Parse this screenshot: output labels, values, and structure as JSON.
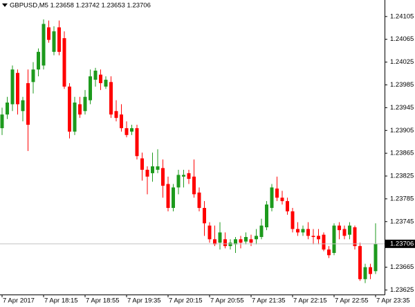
{
  "chart_data": {
    "type": "candlestick",
    "title": "GBPUSD,M5  1.23658 1.23742 1.23653 1.23706",
    "categories": [
      "7 Apr 2017",
      null,
      null,
      null,
      null,
      null,
      null,
      null,
      "7 Apr 18:15",
      null,
      null,
      null,
      null,
      null,
      null,
      null,
      "7 Apr 18:55",
      null,
      null,
      null,
      null,
      null,
      null,
      null,
      "7 Apr 19:35",
      null,
      null,
      null,
      null,
      null,
      null,
      null,
      "7 Apr 20:15",
      null,
      null,
      null,
      null,
      null,
      null,
      null,
      "7 Apr 20:55",
      null,
      null,
      null,
      null,
      null,
      null,
      null,
      "7 Apr 21:35",
      null,
      null,
      null,
      null,
      null,
      null,
      null,
      "7 Apr 22:15",
      null,
      null,
      null,
      null,
      null,
      null,
      null,
      "7 Apr 22:55",
      null,
      null,
      null,
      null,
      null,
      null,
      null,
      "7 Apr 23:35"
    ],
    "open": [
      1.23909,
      1.23933,
      1.23951,
      1.24006,
      1.23939,
      1.23988,
      1.2399,
      1.24012,
      1.24019,
      1.24086,
      1.24043,
      1.24086,
      1.24067,
      1.23982,
      1.23903,
      1.23951,
      1.23939,
      1.23958,
      1.23994,
      1.24003,
      1.23982,
      1.2399,
      1.23939,
      1.23933,
      1.23909,
      1.23903,
      1.23909,
      1.23856,
      1.23836,
      1.2383,
      1.23836,
      1.23839,
      1.23811,
      1.23769,
      1.23805,
      1.23824,
      1.2383,
      1.23824,
      1.23796,
      1.23769,
      1.23738,
      1.23714,
      1.23708,
      1.23714,
      1.23702,
      1.23705,
      1.23714,
      1.2371,
      1.23714,
      1.23714,
      1.23718,
      1.23735,
      1.23769,
      1.23803,
      1.23787,
      1.23781,
      1.23763,
      1.23732,
      1.23726,
      1.23732,
      1.2372,
      1.2372,
      1.23722,
      1.23696,
      1.2369,
      1.23738,
      1.23732,
      1.23722,
      1.23735,
      1.23702,
      1.23644,
      1.23665,
      1.23658
    ],
    "high": [
      1.23945,
      1.23964,
      1.24019,
      1.24012,
      1.23964,
      1.24012,
      1.24025,
      1.24049,
      1.241,
      1.24098,
      1.24088,
      1.24098,
      1.24079,
      1.23988,
      1.23964,
      1.23964,
      1.23976,
      1.24012,
      1.24015,
      1.24012,
      1.24,
      1.24,
      1.23958,
      1.23951,
      1.23921,
      1.23915,
      1.23915,
      1.23866,
      1.23842,
      1.23866,
      1.23872,
      1.23854,
      1.23824,
      1.23811,
      1.23836,
      1.23836,
      1.23836,
      1.23854,
      1.23805,
      1.23781,
      1.23744,
      1.23738,
      1.23744,
      1.23726,
      1.23714,
      1.23718,
      1.2372,
      1.23726,
      1.23722,
      1.23732,
      1.2375,
      1.23781,
      1.23811,
      1.23824,
      1.23799,
      1.23787,
      1.23769,
      1.23744,
      1.23738,
      1.23744,
      1.23732,
      1.23732,
      1.23726,
      1.23702,
      1.23742,
      1.23744,
      1.23738,
      1.23744,
      1.23738,
      1.23708,
      1.23671,
      1.23671,
      1.23742
    ],
    "low": [
      1.23897,
      1.23925,
      1.23939,
      1.23933,
      1.23921,
      1.23869,
      1.2397,
      1.24,
      1.24012,
      1.24059,
      1.24037,
      1.24037,
      1.23978,
      1.23891,
      1.23897,
      1.23927,
      1.23933,
      1.23951,
      1.23982,
      1.23976,
      1.23978,
      1.23927,
      1.23921,
      1.23903,
      1.23893,
      1.23897,
      1.23854,
      1.23817,
      1.23793,
      1.23815,
      1.2383,
      1.23787,
      1.23763,
      1.23763,
      1.23793,
      1.23805,
      1.23811,
      1.23787,
      1.23763,
      1.2372,
      1.23708,
      1.23702,
      1.23696,
      1.23698,
      1.23696,
      1.2369,
      1.23698,
      1.23705,
      1.23702,
      1.23705,
      1.23714,
      1.2373,
      1.23763,
      1.23781,
      1.23775,
      1.23757,
      1.23726,
      1.2372,
      1.2372,
      1.23714,
      1.23705,
      1.23705,
      1.23693,
      1.23681,
      1.23686,
      1.23714,
      1.23714,
      1.23714,
      1.23696,
      1.23641,
      1.23637,
      1.23644,
      1.23653
    ],
    "close": [
      1.23933,
      1.23954,
      1.24012,
      1.23951,
      1.23958,
      1.23915,
      1.24012,
      1.24043,
      1.24092,
      1.24064,
      1.24079,
      1.24043,
      1.23982,
      1.23903,
      1.23954,
      1.23933,
      1.23964,
      1.24,
      1.2401,
      1.23988,
      1.23994,
      1.23933,
      1.23927,
      1.23909,
      1.23897,
      1.23909,
      1.2386,
      1.23836,
      1.23824,
      1.23842,
      1.23842,
      1.23808,
      1.23769,
      1.23805,
      1.23827,
      1.23827,
      1.2382,
      1.23793,
      1.23769,
      1.23742,
      1.23714,
      1.23705,
      1.23726,
      1.23702,
      1.23708,
      1.23714,
      1.23708,
      1.23718,
      1.23708,
      1.2372,
      1.23738,
      1.23775,
      1.23805,
      1.23787,
      1.23781,
      1.23763,
      1.23732,
      1.23726,
      1.23732,
      1.2372,
      1.23718,
      1.23714,
      1.23696,
      1.23686,
      1.23738,
      1.2373,
      1.2372,
      1.23738,
      1.23702,
      1.23644,
      1.23665,
      1.23653,
      1.23706
    ],
    "up_color": "#1d9a1d",
    "down_color": "#ff0000",
    "ylim": [
      1.23617,
      1.24134
    ],
    "yticks": [
      1.24105,
      1.24065,
      1.24025,
      1.23985,
      1.23945,
      1.23905,
      1.23865,
      1.23825,
      1.23785,
      1.23745,
      1.23665,
      1.23625
    ],
    "last_price": 1.23706,
    "grid": false
  }
}
